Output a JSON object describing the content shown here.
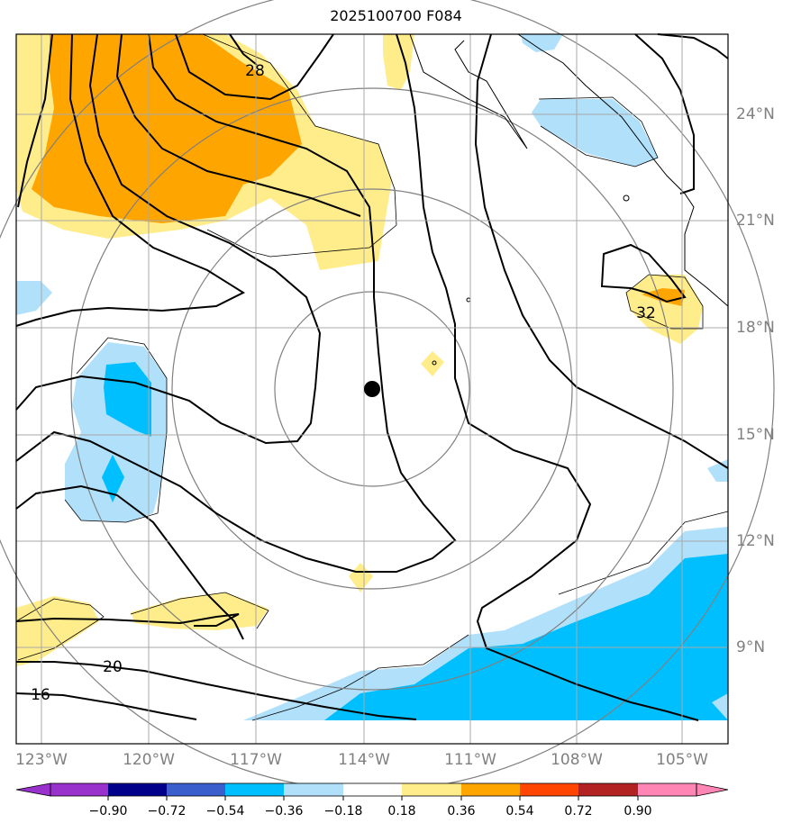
{
  "title": "2025100700 F084",
  "lon_labels": [
    "123°W",
    "120°W",
    "117°W",
    "114°W",
    "111°W",
    "108°W",
    "105°W"
  ],
  "lat_labels": [
    "24°N",
    "21°N",
    "18°N",
    "15°N",
    "12°N",
    "9°N"
  ],
  "contour_labels": [
    "28",
    "32",
    "20",
    "16"
  ],
  "colorbar": {
    "ticks": [
      "−0.90",
      "−0.72",
      "−0.54",
      "−0.36",
      "−0.18",
      "0.18",
      "0.36",
      "0.54",
      "0.72",
      "0.90"
    ],
    "colors": [
      "#9932cc",
      "#00008b",
      "#3a5fcd",
      "#00bfff",
      "#b0e0fa",
      "#ffffff",
      "#ffec8b",
      "#ffa500",
      "#ff4500",
      "#b22222",
      "#ff85b4"
    ]
  },
  "colors": {
    "shade_light_blue": "#b0e0fa",
    "shade_blue": "#00bfff",
    "shade_yellow": "#ffec8b",
    "shade_orange": "#ffa500",
    "grid": "#a9a9a9",
    "range_rings": "#808080"
  }
}
